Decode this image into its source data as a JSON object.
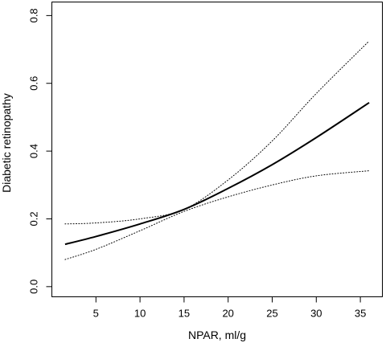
{
  "chart_data": {
    "type": "line",
    "title": "",
    "xlabel": "NPAR, ml/g",
    "ylabel": "Diabetic retinopathy",
    "xlim": [
      0,
      37.5
    ],
    "ylim": [
      -0.03,
      0.84
    ],
    "x_ticks": [
      5,
      10,
      15,
      20,
      25,
      30,
      35
    ],
    "x_tick_labels": [
      "5",
      "10",
      "15",
      "20",
      "25",
      "30",
      "35"
    ],
    "y_ticks": [
      0.0,
      0.2,
      0.4,
      0.6,
      0.8
    ],
    "y_tick_labels": [
      "0.0",
      "0.2",
      "0.4",
      "0.6",
      "0.8"
    ],
    "grid": false,
    "legend": "none",
    "series": [
      {
        "role": "estimate",
        "style": "solid",
        "color": "#000000",
        "x": [
          1.5,
          5,
          10,
          15,
          20,
          25,
          30,
          36
        ],
        "y": [
          0.125,
          0.148,
          0.185,
          0.228,
          0.29,
          0.36,
          0.44,
          0.543
        ]
      },
      {
        "role": "upper bound",
        "style": "dotted",
        "color": "#000000",
        "x": [
          1.5,
          5,
          10,
          15,
          20,
          25,
          30,
          36
        ],
        "y": [
          0.185,
          0.188,
          0.2,
          0.228,
          0.315,
          0.43,
          0.57,
          0.725
        ]
      },
      {
        "role": "lower bound",
        "style": "dotted",
        "color": "#000000",
        "x": [
          1.5,
          5,
          10,
          15,
          20,
          25,
          30,
          36
        ],
        "y": [
          0.08,
          0.11,
          0.165,
          0.222,
          0.265,
          0.3,
          0.327,
          0.342
        ]
      }
    ]
  }
}
